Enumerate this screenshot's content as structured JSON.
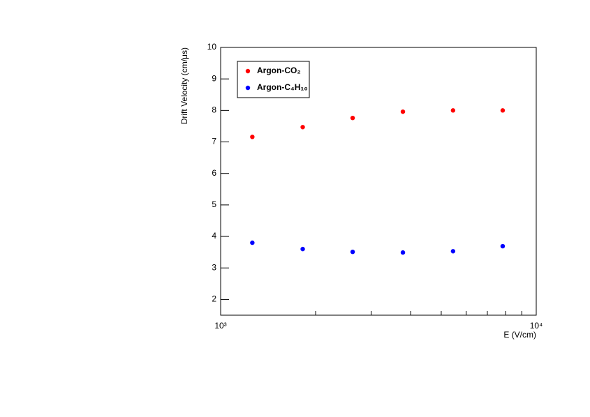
{
  "chart_data": {
    "type": "scatter",
    "x_label": "E (V/cm)",
    "y_label": "Drift Velocity (cm/μs)",
    "xscale": "log",
    "xlim": [
      1000,
      10000
    ],
    "ylim": [
      1.5,
      10
    ],
    "xticks": [
      {
        "value": 1000,
        "label": "10³"
      },
      {
        "value": 10000,
        "label": "10⁴"
      }
    ],
    "xminor_ticks": [
      2000,
      3000,
      4000,
      5000,
      6000,
      7000,
      8000,
      9000
    ],
    "yticks": [
      2,
      3,
      4,
      5,
      6,
      7,
      8,
      9,
      10
    ],
    "legend": "upper left",
    "series": [
      {
        "name": "Argon-CO₂",
        "color": "#ff0000",
        "x": [
          1260,
          1820,
          2620,
          3780,
          5450,
          7830
        ],
        "values": [
          7.16,
          7.47,
          7.76,
          7.96,
          8.0,
          8.0
        ]
      },
      {
        "name": "Argon-C₄H₁₀",
        "color": "#0000ff",
        "x": [
          1260,
          1820,
          2620,
          3780,
          5450,
          7830
        ],
        "values": [
          3.8,
          3.6,
          3.51,
          3.49,
          3.53,
          3.69
        ]
      }
    ]
  }
}
